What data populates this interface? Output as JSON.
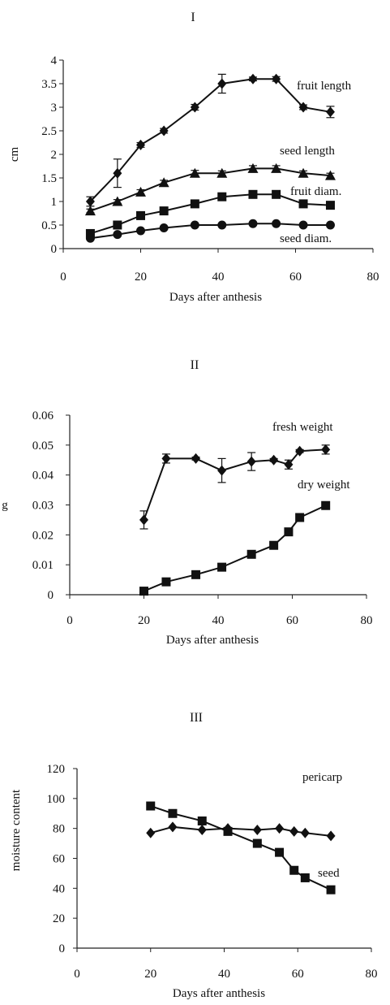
{
  "chart_data": [
    {
      "type": "line",
      "title": "I",
      "xlabel": "Days after anthesis",
      "ylabel": "cm",
      "xlim": [
        0,
        80
      ],
      "ylim": [
        0,
        4
      ],
      "xticks": [
        0,
        20,
        40,
        60,
        80
      ],
      "yticks": [
        0,
        0.5,
        1,
        1.5,
        2,
        2.5,
        3,
        3.5,
        4
      ],
      "series": [
        {
          "name": "fruit length",
          "marker": "diamond",
          "x": [
            7,
            14,
            20,
            26,
            34,
            41,
            49,
            55,
            62,
            69
          ],
          "y": [
            1.0,
            1.6,
            2.2,
            2.5,
            3.0,
            3.5,
            3.6,
            3.6,
            3.0,
            2.9
          ],
          "err": [
            0.1,
            0.3,
            0.05,
            0.05,
            0.06,
            0.2,
            0.04,
            0.05,
            0.05,
            0.12
          ]
        },
        {
          "name": "seed length",
          "marker": "triangle",
          "x": [
            7,
            14,
            20,
            26,
            34,
            41,
            49,
            55,
            62,
            69
          ],
          "y": [
            0.8,
            1.0,
            1.2,
            1.4,
            1.6,
            1.6,
            1.7,
            1.7,
            1.6,
            1.55
          ],
          "err": [
            0.04,
            0.04,
            0.05,
            0.05,
            0.06,
            0.05,
            0.06,
            0.06,
            0.05,
            0.05
          ]
        },
        {
          "name": "fruit diam.",
          "marker": "square",
          "x": [
            7,
            14,
            20,
            26,
            34,
            41,
            49,
            55,
            62,
            69
          ],
          "y": [
            0.32,
            0.5,
            0.7,
            0.8,
            0.95,
            1.1,
            1.15,
            1.15,
            0.95,
            0.92
          ],
          "err": [
            0.03,
            0.03,
            0.03,
            0.03,
            0.03,
            0.03,
            0.03,
            0.03,
            0.03,
            0.03
          ]
        },
        {
          "name": "seed diam.",
          "marker": "circle",
          "x": [
            7,
            14,
            20,
            26,
            34,
            41,
            49,
            55,
            62,
            69
          ],
          "y": [
            0.22,
            0.3,
            0.38,
            0.44,
            0.5,
            0.5,
            0.53,
            0.53,
            0.5,
            0.5
          ],
          "err": [
            0.02,
            0.02,
            0.02,
            0.02,
            0.02,
            0.02,
            0.02,
            0.02,
            0.02,
            0.02
          ]
        }
      ]
    },
    {
      "type": "line",
      "title": "II",
      "xlabel": "Days after anthesis",
      "ylabel": "g",
      "xlim": [
        0,
        80
      ],
      "ylim": [
        0,
        0.06
      ],
      "xticks": [
        0,
        20,
        40,
        60,
        80
      ],
      "yticks": [
        0,
        0.01,
        0.02,
        0.03,
        0.04,
        0.05,
        0.06
      ],
      "ytick_labels": [
        "0",
        "0.01",
        "0.02",
        "0.03",
        "0.04",
        "0.05",
        "0.06"
      ],
      "series": [
        {
          "name": "fresh weight",
          "marker": "diamond",
          "x": [
            20,
            26,
            34,
            41,
            49,
            55,
            59,
            62,
            69
          ],
          "y": [
            0.025,
            0.0455,
            0.0455,
            0.0415,
            0.0445,
            0.045,
            0.0435,
            0.048,
            0.0485
          ],
          "err": [
            0.003,
            0.0015,
            0.0005,
            0.004,
            0.003,
            0.0005,
            0.0015,
            0.0005,
            0.0015
          ]
        },
        {
          "name": "dry weight",
          "marker": "square",
          "x": [
            20,
            26,
            34,
            41,
            49,
            55,
            59,
            62,
            69
          ],
          "y": [
            0.0012,
            0.0043,
            0.0067,
            0.0092,
            0.0135,
            0.0165,
            0.021,
            0.0258,
            0.0298
          ],
          "err": [
            0.0004,
            0.0004,
            0.0004,
            0.0005,
            0.0005,
            0.0006,
            0.0006,
            0.0008,
            0.0006
          ]
        }
      ]
    },
    {
      "type": "line",
      "title": "III",
      "xlabel": "Days after anthesis",
      "ylabel": "moisture content",
      "xlim": [
        0,
        80
      ],
      "ylim": [
        0,
        120
      ],
      "xticks": [
        0,
        20,
        40,
        60,
        80
      ],
      "yticks": [
        0,
        20,
        40,
        60,
        80,
        100,
        120
      ],
      "series": [
        {
          "name": "pericarp",
          "marker": "diamond",
          "x": [
            20,
            26,
            34,
            41,
            49,
            55,
            59,
            62,
            69
          ],
          "y": [
            77,
            81,
            79,
            80,
            79,
            80,
            78,
            77,
            75
          ]
        },
        {
          "name": "seed",
          "marker": "square",
          "x": [
            20,
            26,
            34,
            41,
            49,
            55,
            59,
            62,
            69
          ],
          "y": [
            95,
            90,
            85,
            78,
            70,
            64,
            52,
            47,
            39
          ]
        }
      ]
    }
  ]
}
